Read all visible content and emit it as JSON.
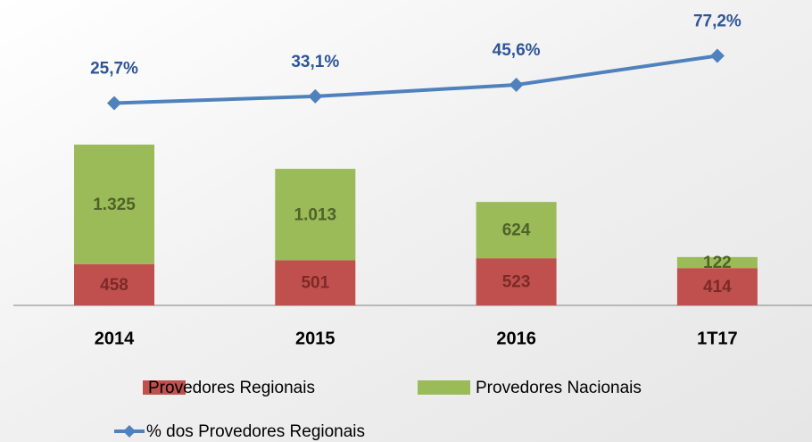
{
  "chart_data": {
    "type": "bar-line",
    "categories": [
      "2014",
      "2015",
      "2016",
      "1T17"
    ],
    "series": [
      {
        "name": "Provedores Regionais",
        "color": "#c0504d",
        "label_color": "#7b2a28",
        "values": [
          458,
          501,
          523,
          414
        ]
      },
      {
        "name": "Provedores Nacionais",
        "color": "#9bbb59",
        "label_color": "#4f6228",
        "values": [
          1325,
          1013,
          624,
          122
        ],
        "value_labels": [
          "1.325",
          "1.013",
          "624",
          "122"
        ]
      },
      {
        "name": "% dos Provedores Regionais",
        "color": "#4f81bd",
        "label_color": "#2f5597",
        "axis": "y2",
        "values": [
          25.7,
          33.1,
          45.6,
          77.2
        ],
        "value_labels": [
          "25,7%",
          "33,1%",
          "45,6%",
          "77,2%"
        ]
      }
    ],
    "stacked": true,
    "ylim": [
      0,
      3000
    ],
    "y2lim": [
      0,
      100
    ],
    "grid": false
  }
}
